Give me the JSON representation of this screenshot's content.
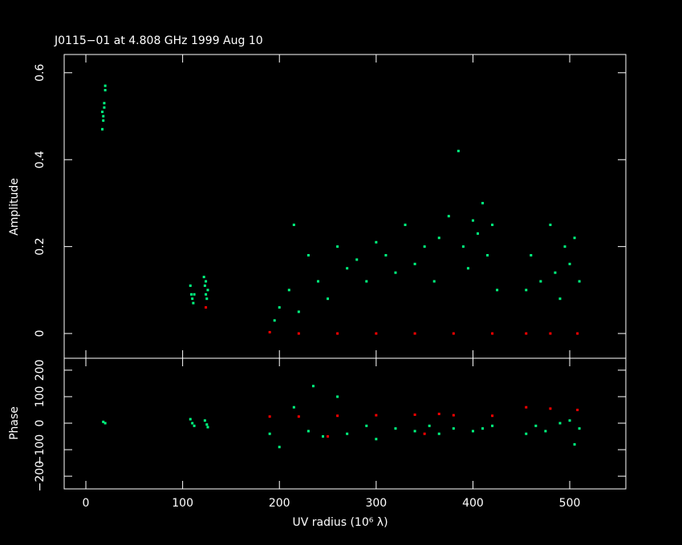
{
  "chart_data": [
    {
      "type": "scatter",
      "title": "J0115−01 at 4.808 GHz 1999 Aug 10",
      "ylabel": "Amplitude",
      "xlim": [
        -22.4,
        558
      ],
      "xticks": [
        0,
        100,
        200,
        300,
        400,
        500
      ],
      "ylim": [
        -0.057,
        0.642
      ],
      "yticks": [
        0,
        0.2,
        0.4,
        0.6
      ],
      "series": [
        {
          "color": "#00ff80",
          "x": [
            17,
            18,
            19,
            20,
            19,
            18,
            20,
            17,
            108,
            109,
            110,
            111,
            112,
            122,
            123,
            124,
            125,
            126,
            124,
            195,
            200,
            210,
            215,
            220,
            230,
            240,
            250,
            260,
            270,
            280,
            290,
            300,
            310,
            320,
            330,
            340,
            350,
            360,
            365,
            375,
            385,
            390,
            395,
            400,
            405,
            410,
            415,
            420,
            425,
            455,
            460,
            470,
            480,
            485,
            490,
            495,
            500,
            505,
            510
          ],
          "values": [
            0.47,
            0.5,
            0.53,
            0.56,
            0.52,
            0.49,
            0.57,
            0.51,
            0.11,
            0.09,
            0.08,
            0.07,
            0.09,
            0.13,
            0.11,
            0.09,
            0.08,
            0.1,
            0.12,
            0.03,
            0.06,
            0.1,
            0.25,
            0.05,
            0.18,
            0.12,
            0.08,
            0.2,
            0.15,
            0.17,
            0.12,
            0.21,
            0.18,
            0.14,
            0.25,
            0.16,
            0.2,
            0.12,
            0.22,
            0.27,
            0.42,
            0.2,
            0.15,
            0.26,
            0.23,
            0.3,
            0.18,
            0.25,
            0.1,
            0.1,
            0.18,
            0.12,
            0.25,
            0.14,
            0.08,
            0.2,
            0.16,
            0.22,
            0.12
          ]
        },
        {
          "color": "#ff0000",
          "x": [
            124,
            190,
            220,
            260,
            300,
            340,
            380,
            420,
            455,
            480,
            508
          ],
          "values": [
            0.06,
            0.003,
            0,
            0,
            0,
            0,
            0,
            0,
            0,
            0,
            0
          ]
        }
      ]
    },
    {
      "type": "scatter",
      "ylabel": "Phase",
      "xlabel": "UV radius  (10⁶ λ)",
      "xlim": [
        -22.4,
        558
      ],
      "xticks": [
        0,
        100,
        200,
        300,
        400,
        500
      ],
      "ylim": [
        -248,
        245
      ],
      "yticks": [
        {
          "value": -200,
          "label": "−200"
        },
        {
          "value": -100,
          "label": "−100"
        },
        0,
        100,
        200
      ],
      "series": [
        {
          "color": "#00ff80",
          "x": [
            18,
            20,
            108,
            110,
            112,
            123,
            125,
            126,
            190,
            200,
            215,
            230,
            245,
            260,
            270,
            290,
            300,
            320,
            340,
            355,
            365,
            380,
            400,
            410,
            420,
            455,
            465,
            475,
            490,
            500,
            510,
            505,
            235
          ],
          "values": [
            5,
            0,
            15,
            0,
            -10,
            10,
            -5,
            -15,
            -40,
            -90,
            60,
            -30,
            -50,
            100,
            -40,
            -10,
            -60,
            -20,
            -30,
            -10,
            -40,
            -20,
            -30,
            -20,
            -10,
            -40,
            -10,
            -30,
            0,
            10,
            -20,
            -80,
            140
          ]
        },
        {
          "color": "#ff0000",
          "x": [
            190,
            220,
            260,
            300,
            340,
            365,
            380,
            420,
            455,
            480,
            508,
            250,
            350
          ],
          "values": [
            25,
            25,
            28,
            30,
            32,
            35,
            30,
            28,
            60,
            55,
            50,
            -50,
            -40
          ]
        }
      ]
    }
  ]
}
